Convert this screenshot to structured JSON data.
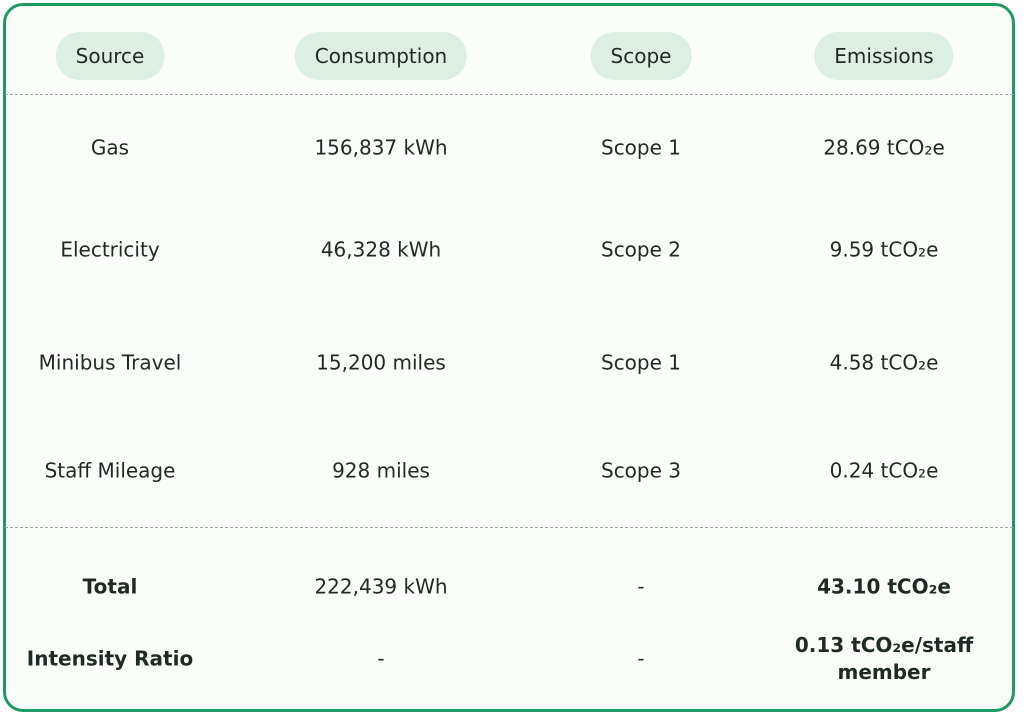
{
  "headers": {
    "source": "Source",
    "consumption": "Consumption",
    "scope": "Scope",
    "emissions": "Emissions"
  },
  "rows": [
    {
      "source": "Gas",
      "consumption": "156,837 kWh",
      "scope": "Scope 1",
      "emissions": "28.69 tCO₂e"
    },
    {
      "source": "Electricity",
      "consumption": "46,328 kWh",
      "scope": "Scope 2",
      "emissions": "9.59 tCO₂e"
    },
    {
      "source": "Minibus Travel",
      "consumption": "15,200 miles",
      "scope": "Scope 1",
      "emissions": "4.58 tCO₂e"
    },
    {
      "source": "Staff Mileage",
      "consumption": "928 miles",
      "scope": "Scope 3",
      "emissions": "0.24 tCO₂e"
    }
  ],
  "total": {
    "label": "Total",
    "consumption": "222,439 kWh",
    "scope": "-",
    "emissions": "43.10 tCO₂e"
  },
  "intensity": {
    "label": "Intensity Ratio",
    "consumption": "-",
    "scope": "-",
    "emissions": "0.13 tCO₂e/staff member"
  },
  "colors": {
    "border": "#1e9a63",
    "pill": "#dcefe3"
  }
}
